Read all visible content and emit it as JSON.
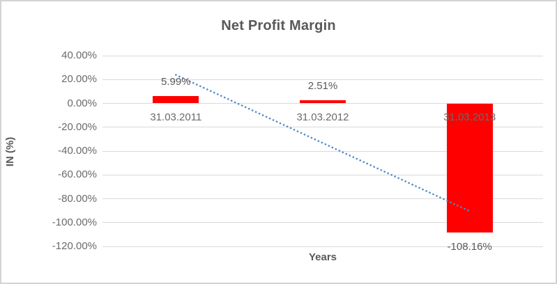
{
  "chart_data": {
    "type": "bar",
    "title": "Net Profit Margin",
    "xlabel": "Years",
    "ylabel": "IN (%)",
    "categories": [
      "31.03.2011",
      "31.03.2012",
      "31.03.2013"
    ],
    "values": [
      5.99,
      2.51,
      -108.16
    ],
    "data_labels": [
      "5.99%",
      "2.51%",
      "-108.16%"
    ],
    "yticks": [
      "40.00%",
      "20.00%",
      "0.00%",
      "-20.00%",
      "-40.00%",
      "-60.00%",
      "-80.00%",
      "-100.00%",
      "-120.00%"
    ],
    "ylim": [
      -120,
      40
    ],
    "grid": true,
    "legend": false,
    "bar_color": "#ff0000",
    "gridline_color": "#d9d9d9",
    "text_color": "#595959",
    "trendline": {
      "type": "linear",
      "style": "dotted",
      "color": "#4e8ac8",
      "start_value": 23.9,
      "end_value": -90.4
    }
  }
}
